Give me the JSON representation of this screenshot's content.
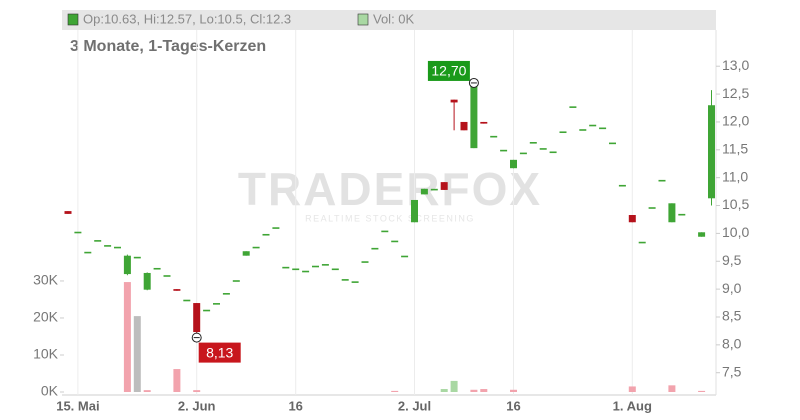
{
  "chart_data": {
    "type": "candlestick",
    "subtitle": "3 Monate, 1-Tages-Kerzen",
    "ohlc_legend": "Op:10.63, Hi:12.57, Lo:10.5, Cl:12.3",
    "volume_legend": "Vol: 0K",
    "watermark": "TRADERFOX",
    "watermark_sub": "REALTIME STOCK SCREENING",
    "categories": [
      null,
      "15. Mai",
      null,
      null,
      null,
      null,
      null,
      null,
      null,
      null,
      null,
      null,
      null,
      "2. Jun",
      null,
      null,
      null,
      null,
      null,
      null,
      null,
      null,
      null,
      "16",
      null,
      null,
      null,
      null,
      null,
      null,
      null,
      null,
      null,
      null,
      null,
      "2. Jul",
      null,
      null,
      null,
      null,
      null,
      null,
      null,
      null,
      null,
      "16",
      null,
      null,
      null,
      null,
      null,
      null,
      null,
      null,
      null,
      null,
      null,
      "1. Aug",
      null,
      null,
      null,
      null,
      null,
      null,
      null,
      null
    ],
    "open": [
      10.4,
      10.03,
      9.67,
      9.88,
      9.79,
      9.76,
      9.27,
      9.58,
      8.99,
      9.38,
      9.25,
      9.0,
      8.81,
      8.75,
      8.63,
      8.75,
      8.93,
      9.16,
      9.6,
      9.76,
      9.99,
      10.11,
      9.4,
      9.37,
      9.33,
      9.42,
      9.45,
      9.37,
      9.18,
      9.14,
      9.5,
      9.74,
      10.05,
      9.87,
      9.6,
      10.2,
      10.7,
      10.8,
      10.92,
      12.4,
      12.0,
      11.53,
      12.0,
      11.75,
      11.5,
      11.17,
      11.45,
      11.64,
      11.53,
      11.47,
      11.83,
      12.28,
      11.87,
      11.95,
      11.9,
      11.63,
      10.87,
      10.33,
      9.85,
      10.47,
      10.96,
      10.2,
      10.35,
      null,
      9.94,
      10.63
    ],
    "high": [
      10.4,
      10.03,
      9.67,
      9.88,
      9.79,
      9.76,
      9.62,
      9.58,
      9.3,
      9.38,
      9.25,
      9.0,
      8.81,
      8.75,
      8.63,
      8.75,
      8.93,
      9.16,
      9.68,
      9.76,
      9.99,
      10.11,
      9.4,
      9.37,
      9.33,
      9.42,
      9.45,
      9.37,
      9.18,
      9.14,
      9.5,
      9.74,
      10.05,
      9.87,
      9.6,
      10.6,
      10.8,
      10.8,
      10.92,
      12.4,
      12.0,
      12.7,
      12.0,
      11.75,
      11.5,
      11.32,
      11.45,
      11.64,
      11.53,
      11.47,
      11.83,
      12.28,
      11.87,
      11.95,
      11.9,
      11.63,
      10.87,
      10.33,
      9.85,
      10.47,
      10.96,
      10.54,
      10.35,
      null,
      10.02,
      12.57
    ],
    "low": [
      10.35,
      10.03,
      9.67,
      9.88,
      9.79,
      9.76,
      9.25,
      9.58,
      8.98,
      9.38,
      9.25,
      8.97,
      8.81,
      8.13,
      8.63,
      8.75,
      8.93,
      9.16,
      9.6,
      9.76,
      9.99,
      10.11,
      9.4,
      9.37,
      9.33,
      9.42,
      9.45,
      9.37,
      9.18,
      9.14,
      9.5,
      9.74,
      10.05,
      9.87,
      9.6,
      10.2,
      10.7,
      10.8,
      10.78,
      11.85,
      11.85,
      11.53,
      11.97,
      11.75,
      11.5,
      11.17,
      11.45,
      11.64,
      11.53,
      11.47,
      11.83,
      12.28,
      11.87,
      11.95,
      11.9,
      11.63,
      10.87,
      10.2,
      9.85,
      10.47,
      10.96,
      10.2,
      10.35,
      null,
      9.94,
      10.5
    ],
    "close": [
      10.35,
      10.03,
      9.67,
      9.88,
      9.79,
      9.76,
      9.6,
      9.58,
      9.29,
      9.38,
      9.25,
      8.97,
      8.81,
      8.23,
      8.63,
      8.75,
      8.93,
      9.16,
      9.68,
      9.76,
      9.99,
      10.11,
      9.4,
      9.37,
      9.33,
      9.42,
      9.45,
      9.37,
      9.18,
      9.14,
      9.5,
      9.74,
      10.05,
      9.87,
      9.6,
      10.6,
      10.8,
      10.8,
      10.78,
      12.35,
      11.85,
      12.7,
      11.97,
      11.75,
      11.5,
      11.32,
      11.45,
      11.64,
      11.53,
      11.47,
      11.83,
      12.28,
      11.87,
      11.95,
      11.9,
      11.63,
      10.87,
      10.2,
      9.85,
      10.47,
      10.96,
      10.54,
      10.35,
      null,
      10.02,
      12.3
    ],
    "up_color": "#3fa535",
    "down_color": "#b5121b",
    "volume": {
      "values": [
        null,
        null,
        null,
        null,
        null,
        null,
        29700,
        20500,
        500,
        null,
        null,
        6200,
        null,
        500,
        null,
        null,
        null,
        null,
        null,
        null,
        null,
        null,
        null,
        null,
        null,
        null,
        null,
        null,
        null,
        null,
        null,
        null,
        null,
        300,
        null,
        null,
        null,
        null,
        800,
        3000,
        null,
        600,
        800,
        null,
        null,
        600,
        null,
        null,
        null,
        null,
        null,
        null,
        null,
        null,
        null,
        null,
        null,
        1500,
        null,
        null,
        null,
        1800,
        null,
        null,
        300,
        null
      ],
      "colors": [
        null,
        null,
        null,
        null,
        null,
        null,
        "#f2a3ad",
        "#bdbdbd",
        "#f2a3ad",
        null,
        null,
        "#f2a3ad",
        null,
        "#f2a3ad",
        null,
        null,
        null,
        null,
        null,
        null,
        null,
        null,
        null,
        null,
        null,
        null,
        null,
        null,
        null,
        null,
        null,
        null,
        null,
        "#f2a3ad",
        null,
        null,
        null,
        null,
        "#a9d8a3",
        "#a9d8a3",
        null,
        "#f2a3ad",
        "#f2a3ad",
        null,
        null,
        "#f2a3ad",
        null,
        null,
        null,
        null,
        null,
        null,
        null,
        null,
        null,
        null,
        null,
        "#f2a3ad",
        null,
        null,
        null,
        "#f2a3ad",
        null,
        null,
        "#f2a3ad",
        null
      ]
    },
    "ylim": [
      7.1,
      13.65
    ],
    "yticks": [
      {
        "value": 7.5,
        "label": "7,5"
      },
      {
        "value": 8.0,
        "label": "8,0"
      },
      {
        "value": 8.5,
        "label": "8,5"
      },
      {
        "value": 9.0,
        "label": "9,0"
      },
      {
        "value": 9.5,
        "label": "9,5"
      },
      {
        "value": 10.0,
        "label": "10,0"
      },
      {
        "value": 10.5,
        "label": "10,5"
      },
      {
        "value": 11.0,
        "label": "11,0"
      },
      {
        "value": 11.5,
        "label": "11,5"
      },
      {
        "value": 12.0,
        "label": "12,0"
      },
      {
        "value": 12.5,
        "label": "12,5"
      },
      {
        "value": 13.0,
        "label": "13,0"
      }
    ],
    "y2lim": [
      0,
      97800
    ],
    "y2ticks": [
      {
        "value": 0,
        "label": "0K"
      },
      {
        "value": 10000,
        "label": "10K"
      },
      {
        "value": 20000,
        "label": "20K"
      },
      {
        "value": 30000,
        "label": "30K"
      }
    ],
    "grid": true,
    "annotations": [
      {
        "index": 41,
        "value": 12.7,
        "label": "12,70",
        "color": "#1a9a1a",
        "placement": "left"
      },
      {
        "index": 13,
        "value": 8.13,
        "label": "8,13",
        "color": "#c8161d",
        "placement": "right"
      }
    ]
  }
}
